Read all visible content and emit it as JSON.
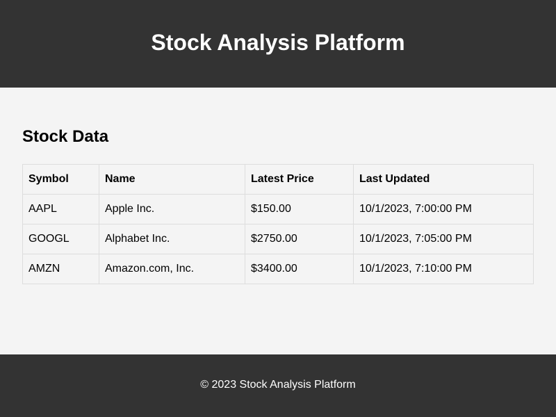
{
  "header": {
    "title": "Stock Analysis Platform"
  },
  "main": {
    "section_title": "Stock Data",
    "table": {
      "columns": [
        "Symbol",
        "Name",
        "Latest Price",
        "Last Updated"
      ],
      "rows": [
        {
          "symbol": "AAPL",
          "name": "Apple Inc.",
          "price": "$150.00",
          "updated": "10/1/2023, 7:00:00 PM"
        },
        {
          "symbol": "GOOGL",
          "name": "Alphabet Inc.",
          "price": "$2750.00",
          "updated": "10/1/2023, 7:05:00 PM"
        },
        {
          "symbol": "AMZN",
          "name": "Amazon.com, Inc.",
          "price": "$3400.00",
          "updated": "10/1/2023, 7:10:00 PM"
        }
      ]
    }
  },
  "footer": {
    "text": "© 2023 Stock Analysis Platform"
  },
  "colors": {
    "header_bg": "#333333",
    "page_bg": "#f4f4f4",
    "border": "#dddddd"
  }
}
